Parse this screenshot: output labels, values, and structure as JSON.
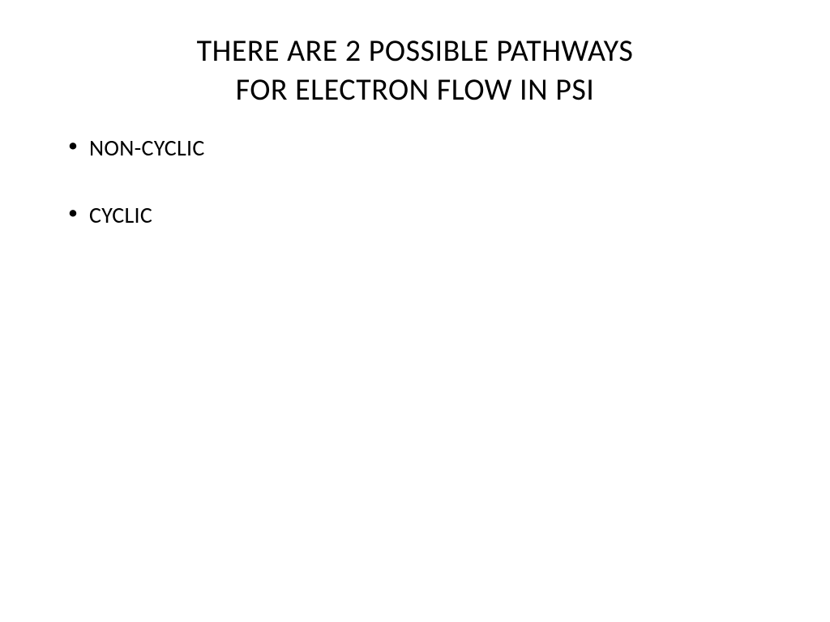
{
  "title": {
    "line1": "THERE ARE 2 POSSIBLE PATHWAYS",
    "line2": "FOR ELECTRON FLOW IN PSI"
  },
  "bullets": {
    "item0": "NON-CYCLIC",
    "item1": "CYCLIC"
  },
  "styling": {
    "background_color": "#ffffff",
    "text_color": "#000000",
    "title_fontsize": 38,
    "title_fontweight": 400,
    "bullet_fontsize": 28,
    "bullet_fontweight": 400,
    "font_family": "Calibri",
    "slide_width": 1024,
    "slide_height": 768,
    "bullet_spacing": 48
  }
}
